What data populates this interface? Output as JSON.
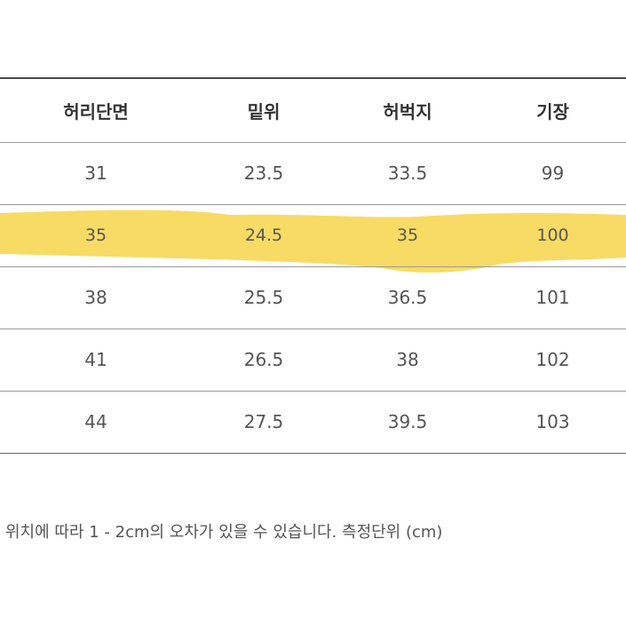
{
  "table": {
    "headers": [
      "허리단면",
      "밑위",
      "허벅지",
      "기장"
    ],
    "rows": [
      [
        "31",
        "23.5",
        "33.5",
        "99"
      ],
      [
        "35",
        "24.5",
        "35",
        "100"
      ],
      [
        "38",
        "25.5",
        "36.5",
        "101"
      ],
      [
        "41",
        "26.5",
        "38",
        "102"
      ],
      [
        "44",
        "27.5",
        "39.5",
        "103"
      ]
    ],
    "highlighted_row_index": 1,
    "highlight_color": "#f7d54a"
  },
  "note": "위치에 따라 1 - 2cm의 오차가 있을 수 있습니다. 측정단위 (cm)"
}
